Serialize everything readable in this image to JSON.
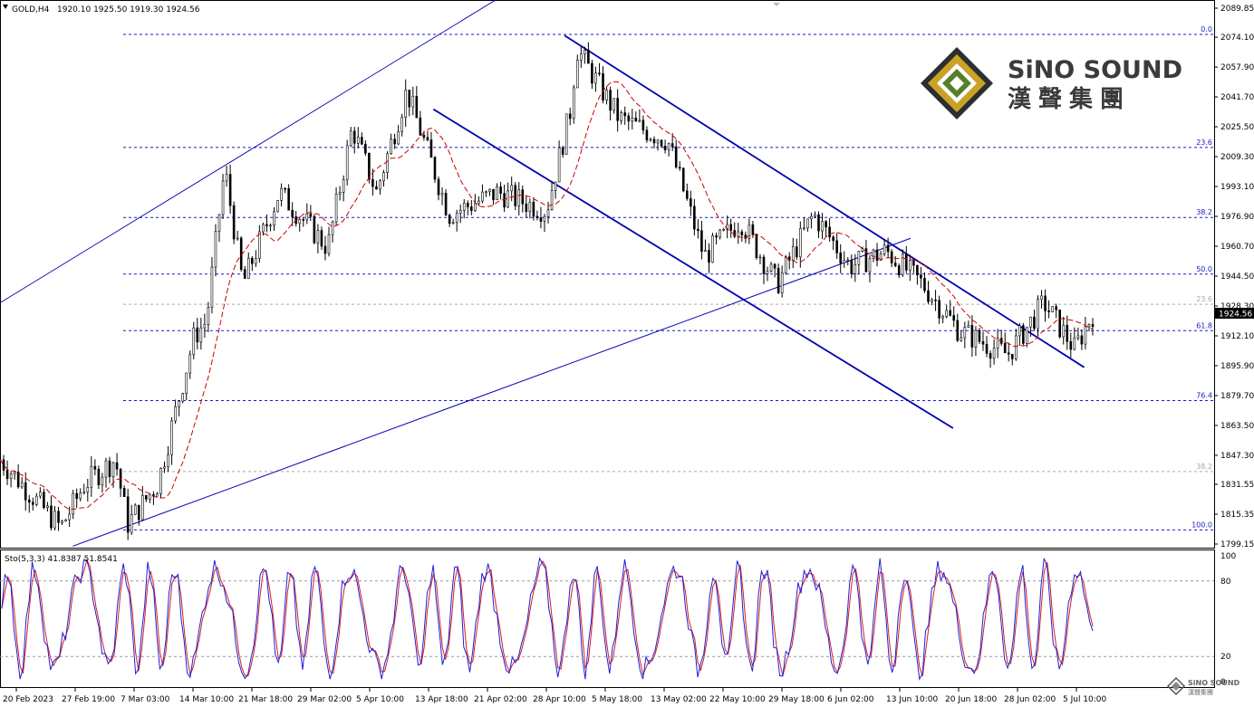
{
  "header": {
    "symbol": "GOLD,H4",
    "ohlc": "1920.10 1925.50 1919.30 1924.56",
    "indicator": "Sto(5,3,3) 41.8387 51.8541"
  },
  "colors": {
    "candle": "#000000",
    "trendline": "#0000b0",
    "ma": "#cc0000",
    "fib": "#1a1acc",
    "stoch_main": "#1e1ed8",
    "stoch_signal": "#d81e1e",
    "grid_text": "#000000",
    "logo_gold": "#c9a227",
    "logo_green": "#5a7d2a",
    "logo_dark": "#3b3b3b"
  },
  "logo": {
    "en": "SiNO SOUND",
    "cn": "漢聲集團",
    "small_en": "SiNO SOUND",
    "small_cn": "漢聲集團"
  },
  "chart_data": [
    {
      "type": "candlestick",
      "title": "",
      "symbol": "GOLD",
      "timeframe": "H4",
      "last_price": "1924.56",
      "price_ticks": [
        "2089.85",
        "2074.10",
        "2057.90",
        "2041.70",
        "2025.50",
        "2009.30",
        "1993.10",
        "1976.90",
        "1960.70",
        "1944.50",
        "1928.30",
        "1912.10",
        "1895.90",
        "1879.70",
        "1863.50",
        "1847.30",
        "1831.55",
        "1815.35",
        "1799.15"
      ],
      "ylim": [
        1799.15,
        2089.85
      ],
      "time_ticks": [
        "20 Feb 2023",
        "27 Feb 19:00",
        "7 Mar 03:00",
        "14 Mar 10:00",
        "21 Mar 18:00",
        "29 Mar 02:00",
        "5 Apr 10:00",
        "13 Apr 18:00",
        "21 Apr 02:00",
        "28 Apr 10:00",
        "5 May 18:00",
        "13 May 02:00",
        "22 May 10:00",
        "29 May 18:00",
        "6 Jun 02:00",
        "13 Jun 10:00",
        "20 Jun 18:00",
        "28 Jun 02:00",
        "5 Jul 10:00"
      ],
      "approx_path": [
        {
          "t": 0,
          "price": 1845
        },
        {
          "t": 0.05,
          "price": 1808
        },
        {
          "t": 0.07,
          "price": 1832
        },
        {
          "t": 0.095,
          "price": 1845
        },
        {
          "t": 0.105,
          "price": 1810
        },
        {
          "t": 0.13,
          "price": 1832
        },
        {
          "t": 0.16,
          "price": 1912
        },
        {
          "t": 0.17,
          "price": 1920
        },
        {
          "t": 0.185,
          "price": 2003
        },
        {
          "t": 0.2,
          "price": 1940
        },
        {
          "t": 0.23,
          "price": 1990
        },
        {
          "t": 0.27,
          "price": 1960
        },
        {
          "t": 0.29,
          "price": 2025
        },
        {
          "t": 0.31,
          "price": 1990
        },
        {
          "t": 0.335,
          "price": 2045
        },
        {
          "t": 0.37,
          "price": 1978
        },
        {
          "t": 0.41,
          "price": 1990
        },
        {
          "t": 0.45,
          "price": 1980
        },
        {
          "t": 0.47,
          "price": 2035
        },
        {
          "t": 0.475,
          "price": 2068
        },
        {
          "t": 0.51,
          "price": 2030
        },
        {
          "t": 0.55,
          "price": 2018
        },
        {
          "t": 0.58,
          "price": 1955
        },
        {
          "t": 0.61,
          "price": 1975
        },
        {
          "t": 0.64,
          "price": 1940
        },
        {
          "t": 0.67,
          "price": 1978
        },
        {
          "t": 0.7,
          "price": 1950
        },
        {
          "t": 0.73,
          "price": 1958
        },
        {
          "t": 0.76,
          "price": 1940
        },
        {
          "t": 0.79,
          "price": 1915
        },
        {
          "t": 0.83,
          "price": 1902
        },
        {
          "t": 0.86,
          "price": 1930
        },
        {
          "t": 0.885,
          "price": 1905
        },
        {
          "t": 0.9,
          "price": 1924
        }
      ]
    },
    {
      "type": "line",
      "title": "Sto(5,3,3)",
      "ylim": [
        0,
        100
      ],
      "y_ticks": [
        "100",
        "80",
        "20",
        "0"
      ],
      "last_main": "41.8387",
      "last_signal": "51.8541"
    }
  ],
  "fib_levels": [
    {
      "label": "0.0",
      "price": 2075.6
    },
    {
      "label": "23.6",
      "price": 2014.3
    },
    {
      "label": "38.2",
      "price": 1976.3
    },
    {
      "label": "50.0",
      "price": 1945.6
    },
    {
      "label": "23.6",
      "price": 1929.2
    },
    {
      "label": "61.8",
      "price": 1914.9
    },
    {
      "label": "76.4",
      "price": 1877.0
    },
    {
      "label": "38.2",
      "price": 1838.5
    },
    {
      "label": "100.0",
      "price": 1806.8
    }
  ]
}
